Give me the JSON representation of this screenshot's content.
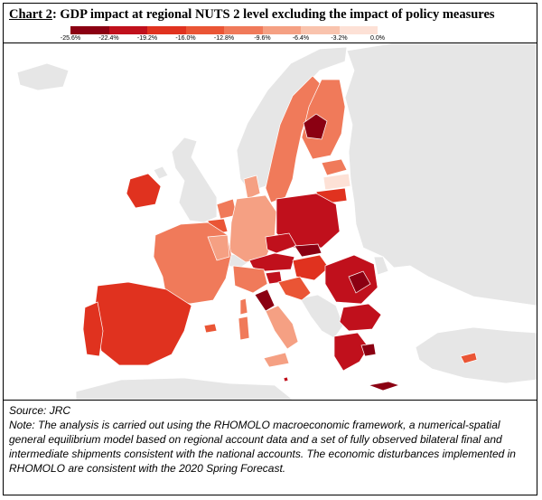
{
  "title": {
    "label": "Chart 2",
    "text": ": GDP impact at regional NUTS 2 level excluding the impact of policy measures"
  },
  "legend": {
    "ticks": [
      "-25.6%",
      "-22.4%",
      "-19.2%",
      "-16.0%",
      "-12.8%",
      "-9.6%",
      "-6.4%",
      "-3.2%",
      "0.0%"
    ],
    "colors": [
      "#8b0012",
      "#c0101c",
      "#e0321f",
      "#ea5535",
      "#f07a5a",
      "#f5a083",
      "#f9c3ad",
      "#fde1d6"
    ]
  },
  "map": {
    "colors": {
      "non_eu_land": "#e6e6e6",
      "sea": "#ffffff",
      "border": "#ffffff"
    }
  },
  "source": "Source: JRC",
  "note": "Note: The analysis is carried out using the RHOMOLO macroeconomic framework, a numerical-spatial general equilibrium model based on regional account data and a set of fully observed bilateral final and intermediate shipments consistent with the national accounts. The economic disturbances implemented in RHOMOLO are consistent with the 2020 Spring Forecast."
}
